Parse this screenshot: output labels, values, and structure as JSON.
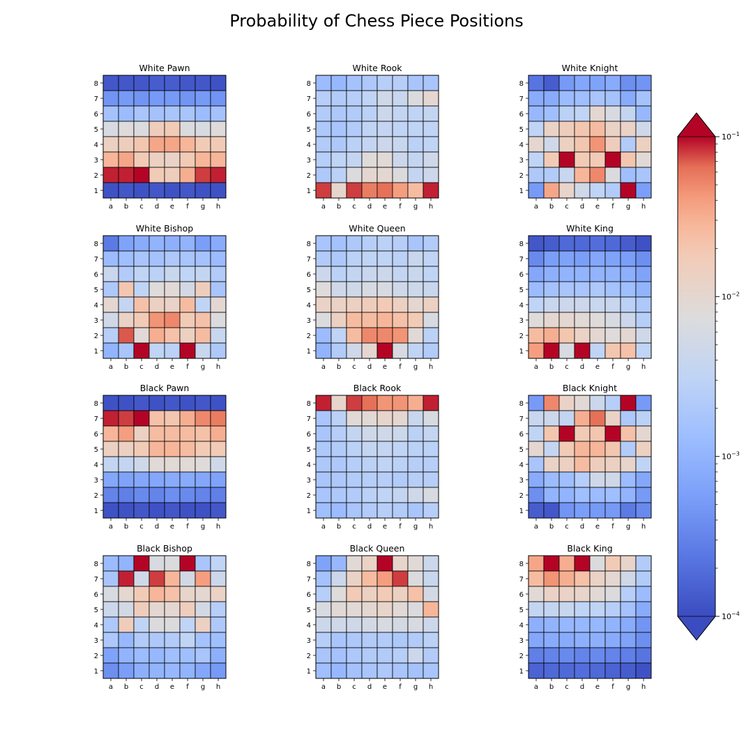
{
  "chart_data": {
    "type": "heatmap",
    "title": "Probability of Chess Piece Positions",
    "files": [
      "a",
      "b",
      "c",
      "d",
      "e",
      "f",
      "g",
      "h"
    ],
    "ranks_top_to_bottom": [
      "8",
      "7",
      "6",
      "5",
      "4",
      "3",
      "2",
      "1"
    ],
    "scale": "log",
    "colormap": "coolwarm",
    "vmin": 0.0001,
    "vmax": 0.1,
    "colorbar": {
      "ticks": [
        {
          "value": 0.1,
          "base": "10",
          "exp": "−1"
        },
        {
          "value": 0.01,
          "base": "10",
          "exp": "−2"
        },
        {
          "value": 0.001,
          "base": "10",
          "exp": "−3"
        },
        {
          "value": 0.0001,
          "base": "10",
          "exp": "−4"
        }
      ],
      "extend": "both"
    },
    "note": "values are log10 probability, rows rank 8 to rank 1, columns a to h",
    "panels": [
      {
        "title": "White Pawn",
        "log10": [
          [
            -3.9,
            -3.9,
            -3.9,
            -3.85,
            -3.85,
            -3.9,
            -3.9,
            -3.95
          ],
          [
            -3.35,
            -3.3,
            -3.35,
            -3.3,
            -3.3,
            -3.35,
            -3.3,
            -3.35
          ],
          [
            -2.8,
            -2.9,
            -2.75,
            -2.8,
            -2.75,
            -2.75,
            -2.9,
            -2.8
          ],
          [
            -2.2,
            -2.1,
            -2.15,
            -1.8,
            -1.75,
            -2.15,
            -2.2,
            -2.1
          ],
          [
            -1.85,
            -1.8,
            -1.7,
            -1.45,
            -1.45,
            -1.55,
            -1.75,
            -1.75
          ],
          [
            -1.55,
            -1.45,
            -1.75,
            -1.85,
            -1.9,
            -1.75,
            -1.55,
            -1.55
          ],
          [
            -1.05,
            -1.05,
            -1.0,
            -1.75,
            -1.8,
            -1.5,
            -1.1,
            -1.05
          ],
          [
            -3.95,
            -3.9,
            -3.95,
            -3.9,
            -3.95,
            -3.9,
            -3.95,
            -3.95
          ]
        ]
      },
      {
        "title": "White Rook",
        "log10": [
          [
            -2.9,
            -2.95,
            -2.8,
            -2.7,
            -2.6,
            -2.6,
            -2.75,
            -2.75
          ],
          [
            -2.6,
            -2.65,
            -2.6,
            -2.5,
            -2.3,
            -2.4,
            -2.15,
            -2.0
          ],
          [
            -2.65,
            -2.7,
            -2.65,
            -2.55,
            -2.35,
            -2.45,
            -2.5,
            -2.45
          ],
          [
            -2.7,
            -2.75,
            -2.65,
            -2.5,
            -2.45,
            -2.5,
            -2.5,
            -2.5
          ],
          [
            -2.65,
            -2.7,
            -2.55,
            -2.45,
            -2.35,
            -2.4,
            -2.55,
            -2.5
          ],
          [
            -2.6,
            -2.5,
            -2.45,
            -2.1,
            -2.05,
            -2.35,
            -2.45,
            -2.3
          ],
          [
            -2.7,
            -2.55,
            -2.15,
            -2.0,
            -2.0,
            -2.15,
            -2.45,
            -2.35
          ],
          [
            -1.1,
            -1.95,
            -1.1,
            -1.25,
            -1.2,
            -1.4,
            -1.6,
            -1.05
          ]
        ]
      },
      {
        "title": "White Knight",
        "log10": [
          [
            -3.65,
            -3.85,
            -3.3,
            -3.15,
            -3.2,
            -3.1,
            -3.4,
            -3.35
          ],
          [
            -3.1,
            -3.1,
            -2.9,
            -2.85,
            -2.75,
            -2.8,
            -3.1,
            -2.8
          ],
          [
            -2.95,
            -2.85,
            -2.55,
            -2.5,
            -2.0,
            -2.2,
            -2.45,
            -2.95
          ],
          [
            -2.5,
            -1.9,
            -1.8,
            -1.7,
            -1.6,
            -1.9,
            -1.9,
            -2.3
          ],
          [
            -2.0,
            -2.3,
            -1.85,
            -1.7,
            -1.35,
            -1.8,
            -2.65,
            -1.85
          ],
          [
            -2.5,
            -1.75,
            -1.0,
            -1.75,
            -1.75,
            -1.0,
            -1.7,
            -2.05
          ],
          [
            -2.7,
            -2.65,
            -2.4,
            -1.55,
            -1.3,
            -2.15,
            -2.85,
            -2.75
          ],
          [
            -3.3,
            -1.45,
            -1.95,
            -2.3,
            -2.5,
            -2.65,
            -1.0,
            -3.25
          ]
        ]
      },
      {
        "title": "White Bishop",
        "log10": [
          [
            -3.6,
            -3.2,
            -3.1,
            -3.0,
            -3.05,
            -3.0,
            -3.25,
            -3.1
          ],
          [
            -2.9,
            -2.85,
            -2.75,
            -2.8,
            -2.7,
            -2.75,
            -2.8,
            -2.9
          ],
          [
            -2.4,
            -2.65,
            -2.5,
            -2.55,
            -2.4,
            -2.5,
            -2.45,
            -2.65
          ],
          [
            -2.7,
            -1.7,
            -2.5,
            -2.1,
            -2.05,
            -2.25,
            -1.8,
            -2.75
          ],
          [
            -2.0,
            -2.45,
            -1.65,
            -1.85,
            -1.9,
            -1.6,
            -2.5,
            -2.0
          ],
          [
            -2.3,
            -1.9,
            -1.75,
            -1.35,
            -1.3,
            -1.75,
            -1.65,
            -2.15
          ],
          [
            -2.6,
            -1.15,
            -2.05,
            -1.5,
            -1.65,
            -1.85,
            -1.6,
            -2.4
          ],
          [
            -3.0,
            -2.75,
            -1.0,
            -2.5,
            -2.55,
            -1.0,
            -2.4,
            -2.7
          ]
        ]
      },
      {
        "title": "White Queen",
        "log10": [
          [
            -2.75,
            -2.8,
            -2.7,
            -2.6,
            -2.55,
            -2.6,
            -2.75,
            -2.65
          ],
          [
            -2.65,
            -2.7,
            -2.55,
            -2.5,
            -2.5,
            -2.55,
            -2.4,
            -2.5
          ],
          [
            -2.35,
            -2.55,
            -2.45,
            -2.4,
            -2.35,
            -2.45,
            -2.4,
            -2.5
          ],
          [
            -2.1,
            -2.3,
            -2.3,
            -2.2,
            -2.2,
            -2.3,
            -2.35,
            -2.4
          ],
          [
            -1.9,
            -1.9,
            -1.85,
            -1.8,
            -1.75,
            -1.85,
            -2.0,
            -1.85
          ],
          [
            -2.15,
            -1.85,
            -1.6,
            -1.6,
            -1.55,
            -1.65,
            -1.75,
            -2.2
          ],
          [
            -2.9,
            -2.5,
            -1.6,
            -1.3,
            -1.3,
            -1.35,
            -2.05,
            -2.55
          ],
          [
            -3.0,
            -2.65,
            -2.3,
            -2.0,
            -1.0,
            -2.2,
            -2.5,
            -2.65
          ]
        ]
      },
      {
        "title": "White King",
        "log10": [
          [
            -3.9,
            -3.85,
            -3.75,
            -3.75,
            -3.7,
            -3.75,
            -3.85,
            -3.95
          ],
          [
            -3.45,
            -3.25,
            -3.2,
            -3.25,
            -3.15,
            -3.2,
            -3.25,
            -3.4
          ],
          [
            -3.15,
            -3.05,
            -3.0,
            -3.0,
            -3.0,
            -3.0,
            -3.05,
            -3.2
          ],
          [
            -2.9,
            -2.8,
            -2.75,
            -2.75,
            -2.7,
            -2.8,
            -2.85,
            -3.0
          ],
          [
            -2.5,
            -2.4,
            -2.35,
            -2.35,
            -2.4,
            -2.4,
            -2.55,
            -2.7
          ],
          [
            -2.1,
            -2.0,
            -2.0,
            -2.05,
            -2.1,
            -2.2,
            -2.35,
            -2.6
          ],
          [
            -1.6,
            -1.5,
            -1.7,
            -1.9,
            -2.0,
            -2.1,
            -2.0,
            -2.3
          ],
          [
            -1.4,
            -1.0,
            -2.2,
            -1.0,
            -2.5,
            -1.7,
            -1.65,
            -2.5
          ]
        ]
      },
      {
        "title": "Black Pawn",
        "log10": [
          [
            -3.95,
            -3.95,
            -3.9,
            -3.95,
            -3.9,
            -3.95,
            -3.9,
            -3.95
          ],
          [
            -1.05,
            -1.1,
            -1.0,
            -1.65,
            -1.7,
            -1.5,
            -1.3,
            -1.25
          ],
          [
            -1.55,
            -1.4,
            -1.85,
            -1.6,
            -1.6,
            -1.6,
            -1.65,
            -1.5
          ],
          [
            -1.85,
            -1.85,
            -1.75,
            -1.55,
            -1.55,
            -1.6,
            -1.75,
            -1.75
          ],
          [
            -2.45,
            -2.45,
            -2.3,
            -2.05,
            -2.05,
            -2.05,
            -2.1,
            -2.3
          ],
          [
            -3.15,
            -3.2,
            -3.15,
            -3.15,
            -3.1,
            -3.1,
            -3.15,
            -3.2
          ],
          [
            -3.5,
            -3.55,
            -3.45,
            -3.5,
            -3.4,
            -3.45,
            -3.5,
            -3.55
          ],
          [
            -3.95,
            -3.95,
            -3.9,
            -3.95,
            -3.9,
            -3.95,
            -3.95,
            -3.9
          ]
        ]
      },
      {
        "title": "Black Rook",
        "log10": [
          [
            -1.05,
            -1.95,
            -1.1,
            -1.2,
            -1.35,
            -1.35,
            -1.5,
            -1.05
          ],
          [
            -2.75,
            -2.55,
            -2.05,
            -2.05,
            -1.95,
            -2.0,
            -2.4,
            -2.2
          ],
          [
            -2.75,
            -2.6,
            -2.45,
            -2.3,
            -2.3,
            -2.35,
            -2.55,
            -2.45
          ],
          [
            -2.7,
            -2.65,
            -2.55,
            -2.45,
            -2.45,
            -2.5,
            -2.55,
            -2.55
          ],
          [
            -2.7,
            -2.7,
            -2.6,
            -2.55,
            -2.5,
            -2.55,
            -2.6,
            -2.6
          ],
          [
            -2.75,
            -2.7,
            -2.65,
            -2.6,
            -2.6,
            -2.65,
            -2.6,
            -2.6
          ],
          [
            -2.75,
            -2.7,
            -2.65,
            -2.55,
            -2.5,
            -2.45,
            -2.3,
            -2.2
          ],
          [
            -2.85,
            -2.9,
            -2.75,
            -2.65,
            -2.6,
            -2.65,
            -2.75,
            -2.6
          ]
        ]
      },
      {
        "title": "Black Knight",
        "log10": [
          [
            -3.3,
            -1.3,
            -1.9,
            -2.05,
            -2.35,
            -2.6,
            -1.0,
            -3.3
          ],
          [
            -2.4,
            -2.35,
            -2.45,
            -1.5,
            -1.2,
            -1.9,
            -2.7,
            -2.55
          ],
          [
            -2.5,
            -1.7,
            -1.0,
            -1.75,
            -1.7,
            -1.0,
            -1.65,
            -2.0
          ],
          [
            -2.0,
            -2.45,
            -1.75,
            -1.55,
            -1.55,
            -1.7,
            -2.65,
            -1.85
          ],
          [
            -2.75,
            -1.9,
            -1.85,
            -1.6,
            -1.8,
            -1.85,
            -1.95,
            -2.5
          ],
          [
            -3.1,
            -2.9,
            -2.85,
            -2.6,
            -2.3,
            -2.3,
            -2.9,
            -3.15
          ],
          [
            -3.4,
            -3.0,
            -3.0,
            -2.85,
            -2.9,
            -2.85,
            -3.0,
            -3.3
          ],
          [
            -3.85,
            -3.9,
            -3.35,
            -3.25,
            -3.3,
            -3.3,
            -3.6,
            -3.45
          ]
        ]
      },
      {
        "title": "Black Bishop",
        "log10": [
          [
            -2.9,
            -3.0,
            -1.0,
            -2.2,
            -2.15,
            -1.0,
            -2.75,
            -2.5
          ],
          [
            -2.75,
            -1.05,
            -2.3,
            -1.1,
            -1.55,
            -2.25,
            -1.4,
            -2.35
          ],
          [
            -2.2,
            -2.0,
            -1.75,
            -1.55,
            -1.65,
            -1.95,
            -2.0,
            -1.9
          ],
          [
            -2.35,
            -2.25,
            -1.8,
            -2.0,
            -2.0,
            -1.8,
            -2.25,
            -2.6
          ],
          [
            -2.7,
            -1.8,
            -2.5,
            -2.15,
            -2.15,
            -2.5,
            -1.85,
            -2.7
          ],
          [
            -2.7,
            -2.95,
            -2.65,
            -2.7,
            -2.65,
            -2.5,
            -2.8,
            -2.85
          ],
          [
            -3.2,
            -3.0,
            -2.9,
            -2.95,
            -2.85,
            -2.85,
            -2.75,
            -3.05
          ],
          [
            -3.4,
            -3.25,
            -3.05,
            -3.0,
            -2.95,
            -3.0,
            -3.15,
            -3.3
          ]
        ]
      },
      {
        "title": "Black Queen",
        "log10": [
          [
            -3.2,
            -2.95,
            -2.05,
            -1.9,
            -1.0,
            -1.95,
            -2.05,
            -2.35
          ],
          [
            -2.8,
            -2.35,
            -1.9,
            -1.6,
            -1.4,
            -1.1,
            -2.15,
            -2.4
          ],
          [
            -2.6,
            -2.1,
            -1.75,
            -1.85,
            -1.75,
            -1.85,
            -1.65,
            -2.25
          ],
          [
            -2.2,
            -2.05,
            -2.05,
            -2.0,
            -1.95,
            -2.05,
            -2.15,
            -1.55
          ],
          [
            -2.35,
            -2.3,
            -2.3,
            -2.25,
            -2.2,
            -2.25,
            -2.2,
            -2.35
          ],
          [
            -2.6,
            -2.75,
            -2.7,
            -2.65,
            -2.65,
            -2.7,
            -2.65,
            -2.55
          ],
          [
            -2.75,
            -2.8,
            -2.7,
            -2.65,
            -2.65,
            -2.6,
            -2.35,
            -2.65
          ],
          [
            -2.85,
            -2.95,
            -2.8,
            -2.75,
            -2.7,
            -2.75,
            -2.8,
            -2.75
          ]
        ]
      },
      {
        "title": "Black King",
        "log10": [
          [
            -1.45,
            -1.0,
            -1.5,
            -1.0,
            -2.15,
            -1.75,
            -1.95,
            -2.65
          ],
          [
            -1.6,
            -1.35,
            -1.5,
            -1.65,
            -1.9,
            -2.0,
            -2.3,
            -2.65
          ],
          [
            -2.05,
            -1.9,
            -1.9,
            -1.95,
            -2.05,
            -2.15,
            -2.6,
            -2.9
          ],
          [
            -2.45,
            -2.45,
            -2.4,
            -2.5,
            -2.5,
            -2.6,
            -2.8,
            -3.1
          ],
          [
            -3.05,
            -3.0,
            -2.95,
            -2.95,
            -2.95,
            -3.0,
            -3.1,
            -3.35
          ],
          [
            -3.15,
            -3.1,
            -3.1,
            -3.05,
            -3.05,
            -3.1,
            -3.2,
            -3.4
          ],
          [
            -3.55,
            -3.5,
            -3.45,
            -3.5,
            -3.45,
            -3.5,
            -3.55,
            -3.65
          ],
          [
            -3.8,
            -3.75,
            -3.75,
            -3.7,
            -3.75,
            -3.8,
            -3.85,
            -3.95
          ]
        ]
      }
    ]
  }
}
